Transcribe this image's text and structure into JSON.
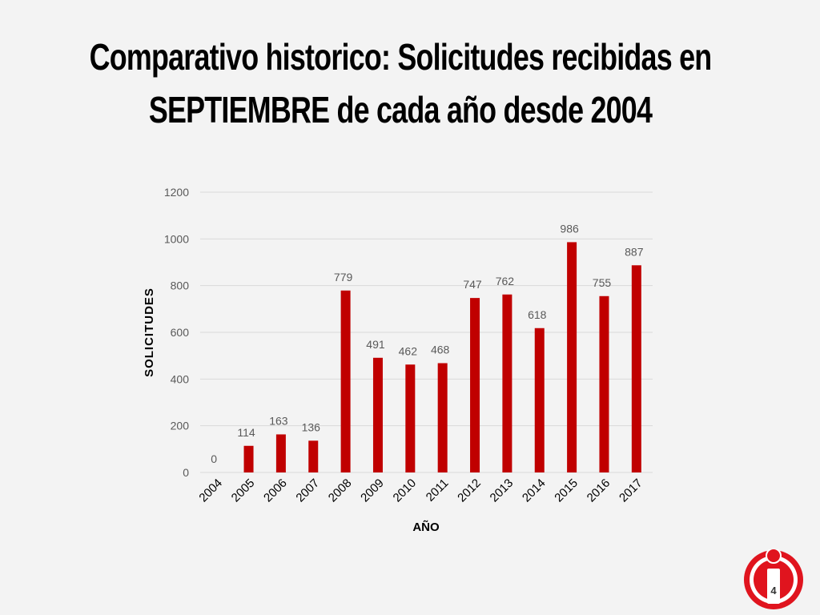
{
  "slide": {
    "title_line1": "Comparativo historico: Solicitudes recibidas en",
    "title_line2": "SEPTIEMBRE de cada año desde 2004",
    "page_number": "4"
  },
  "colors": {
    "bar": "#c00000",
    "grid": "#d9d9d9",
    "background": "#f3f3f3",
    "logo_red": "#e0141e"
  },
  "logo": {
    "icon": "info-i-icon"
  },
  "chart_data": {
    "type": "bar",
    "categories": [
      "2004",
      "2005",
      "2006",
      "2007",
      "2008",
      "2009",
      "2010",
      "2011",
      "2012",
      "2013",
      "2014",
      "2015",
      "2016",
      "2017"
    ],
    "series": [
      {
        "values": [
          0,
          114,
          163,
          136,
          779,
          491,
          462,
          468,
          747,
          762,
          618,
          986,
          755,
          887
        ]
      }
    ],
    "title": "",
    "xlabel": "AÑO",
    "ylabel": "SOLICITUDES",
    "ylim": [
      0,
      1200
    ],
    "yticks": [
      0,
      200,
      400,
      600,
      800,
      1000,
      1200
    ],
    "grid": true,
    "legend": "none",
    "data_labels": true
  }
}
